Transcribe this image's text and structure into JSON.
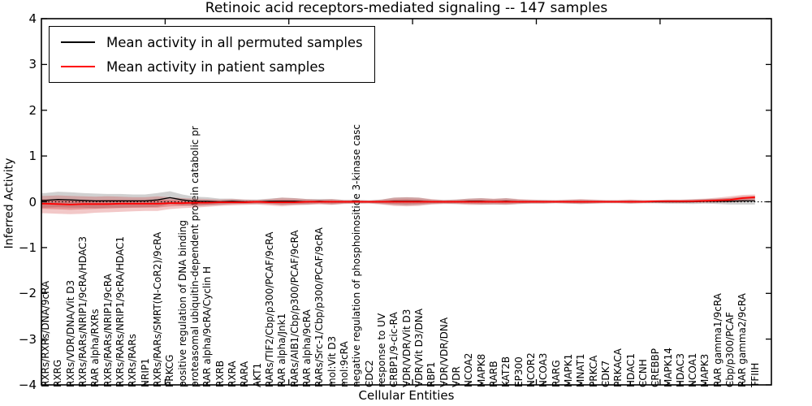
{
  "title": "Retinoic acid receptors-mediated signaling -- 147 samples",
  "legend": {
    "items": [
      {
        "label": "Mean activity in all permuted samples",
        "color": "#000000"
      },
      {
        "label": "Mean activity in patient samples",
        "color": "#ff0000"
      }
    ]
  },
  "axes": {
    "ylabel": "Inferred Activity",
    "xlabel": "Cellular Entities",
    "ylim": [
      -4,
      4
    ],
    "ytick_labels": [
      "4",
      "3",
      "2",
      "1",
      "0",
      "−1",
      "−2",
      "−3",
      "−4"
    ],
    "xtick_major_positions": [
      10,
      20,
      30,
      40,
      50
    ],
    "xlim": [
      0,
      59
    ]
  },
  "chart_data": {
    "type": "line",
    "title": "Retinoic acid receptors-mediated signaling -- 147 samples",
    "xlabel": "Cellular Entities",
    "ylabel": "Inferred Activity",
    "ylim": [
      -4,
      4
    ],
    "grid": false,
    "zero_line_dotted": true,
    "legend_position": "upper left",
    "categories": [
      "RXRs/RXRs/DNA/9cRA",
      "RXRG",
      "RXRs/VDR/DNA/Vit D3",
      "RXRs/RARs/NRIP1/9cRA/HDAC3",
      "RAR alpha/RXRs",
      "RXRs/RARs/NRIP1/9cRA",
      "RXRs/RARs/NRIP1/9cRA/HDAC1",
      "RXRs/RARs",
      "NRIP1",
      "RXRs/RARs/SMRT(N-CoR2)/9cRA",
      "PRKCG",
      "positive regulation of DNA binding",
      "proteasomal ubiquitin-dependent protein catabolic pr",
      "RAR alpha/9cRA/Cyclin H",
      "RXRB",
      "RXRA",
      "RARA",
      "AKT1",
      "RARs/TIF2/Cbp/p300/PCAF/9cRA",
      "RAR alpha/Jnk1",
      "RARs/AIB1/Cbp/p300/PCAF/9cRA",
      "RAR alpha/9cRA",
      "RARs/Src-1/Cbp/p300/PCAF/9cRA",
      "mol:Vit D3",
      "mol:9cRA",
      "negative regulation of phosphoinositide 3-kinase casc",
      "CDC2",
      "response to UV",
      "CRBP1/9-cic-RA",
      "VDR/VDR/Vit D3",
      "VDR/Vit D3/DNA",
      "RBP1",
      "VDR/VDR/DNA",
      "VDR",
      "NCOA2",
      "MAPK8",
      "RARB",
      "KAT2B",
      "EP300",
      "NCOR2",
      "NCOA3",
      "RARG",
      "MAPK1",
      "MNAT1",
      "PRKCA",
      "CDK7",
      "PRKACA",
      "HDAC1",
      "CCNH",
      "CREBBP",
      "MAPK14",
      "HDAC3",
      "NCOA1",
      "MAPK3",
      "RAR gamma1/9cRA",
      "Cbp/p300/PCAF",
      "RAR gamma2/9cRA",
      "TFIIH"
    ],
    "series": [
      {
        "name": "Mean activity in all permuted samples",
        "color": "#000000",
        "values": [
          0.03,
          0.05,
          0.04,
          0.03,
          0.02,
          0.02,
          0.02,
          0.02,
          0.02,
          0.04,
          0.09,
          0.04,
          0.01,
          0.01,
          0.0,
          0.01,
          0.0,
          0.0,
          0.01,
          0.01,
          0.01,
          0.0,
          0.01,
          0.0,
          0.0,
          0.0,
          0.0,
          0.0,
          0.01,
          0.01,
          0.01,
          0.0,
          0.0,
          0.0,
          0.01,
          0.01,
          0.0,
          0.01,
          0.0,
          0.0,
          0.0,
          0.0,
          0.0,
          0.0,
          0.0,
          0.0,
          0.0,
          0.0,
          0.0,
          0.0,
          0.0,
          0.0,
          0.0,
          0.01,
          0.01,
          0.01,
          0.02,
          0.02
        ]
      },
      {
        "name": "Mean activity in patient samples",
        "color": "#ff0000",
        "values": [
          -0.04,
          -0.05,
          -0.06,
          -0.05,
          -0.05,
          -0.05,
          -0.04,
          -0.04,
          -0.04,
          -0.04,
          -0.03,
          -0.03,
          -0.02,
          -0.02,
          -0.01,
          -0.01,
          -0.01,
          0.0,
          -0.01,
          -0.01,
          -0.01,
          0.0,
          0.0,
          0.0,
          0.0,
          0.0,
          0.0,
          0.0,
          0.0,
          0.0,
          0.0,
          0.0,
          0.0,
          0.0,
          0.0,
          0.0,
          0.0,
          0.0,
          0.0,
          0.0,
          0.0,
          0.0,
          0.0,
          0.0,
          0.0,
          0.0,
          0.0,
          0.0,
          0.0,
          0.01,
          0.01,
          0.01,
          0.01,
          0.02,
          0.03,
          0.04,
          0.08,
          0.1
        ]
      }
    ],
    "bands": [
      {
        "name": "permuted samples range",
        "color": "#787878",
        "opacity": 0.35,
        "hi": [
          0.19,
          0.22,
          0.21,
          0.19,
          0.18,
          0.17,
          0.17,
          0.16,
          0.16,
          0.19,
          0.23,
          0.16,
          0.11,
          0.1,
          0.07,
          0.07,
          0.05,
          0.05,
          0.07,
          0.09,
          0.08,
          0.06,
          0.06,
          0.06,
          0.04,
          0.04,
          0.03,
          0.05,
          0.09,
          0.1,
          0.09,
          0.05,
          0.04,
          0.05,
          0.07,
          0.08,
          0.06,
          0.08,
          0.05,
          0.04,
          0.04,
          0.03,
          0.04,
          0.05,
          0.04,
          0.03,
          0.03,
          0.04,
          0.03,
          0.03,
          0.04,
          0.04,
          0.05,
          0.06,
          0.07,
          0.08,
          0.1,
          0.1
        ],
        "lo": [
          -0.13,
          -0.12,
          -0.13,
          -0.13,
          -0.14,
          -0.13,
          -0.13,
          -0.12,
          -0.12,
          -0.11,
          -0.05,
          -0.08,
          -0.09,
          -0.08,
          -0.07,
          -0.05,
          -0.05,
          -0.05,
          -0.05,
          -0.07,
          -0.06,
          -0.06,
          -0.04,
          -0.06,
          -0.04,
          -0.04,
          -0.03,
          -0.05,
          -0.07,
          -0.08,
          -0.07,
          -0.05,
          -0.04,
          -0.05,
          -0.05,
          -0.06,
          -0.06,
          -0.06,
          -0.05,
          -0.04,
          -0.04,
          -0.03,
          -0.04,
          -0.05,
          -0.04,
          -0.03,
          -0.03,
          -0.04,
          -0.03,
          -0.03,
          -0.04,
          -0.04,
          -0.05,
          -0.04,
          -0.05,
          -0.06,
          -0.06,
          -0.06
        ]
      },
      {
        "name": "patient samples range",
        "color": "#cc2222",
        "opacity": 0.25,
        "inner_ratio": 0.55,
        "hi": [
          0.13,
          0.14,
          0.13,
          0.12,
          0.11,
          0.12,
          0.11,
          0.1,
          0.1,
          0.12,
          0.1,
          0.08,
          0.07,
          0.06,
          0.05,
          0.06,
          0.05,
          0.04,
          0.06,
          0.09,
          0.08,
          0.06,
          0.05,
          0.06,
          0.04,
          0.04,
          0.03,
          0.05,
          0.09,
          0.1,
          0.09,
          0.06,
          0.04,
          0.05,
          0.07,
          0.08,
          0.07,
          0.08,
          0.06,
          0.05,
          0.04,
          0.04,
          0.05,
          0.06,
          0.05,
          0.04,
          0.04,
          0.05,
          0.04,
          0.04,
          0.05,
          0.05,
          0.06,
          0.07,
          0.09,
          0.12,
          0.15,
          0.16
        ],
        "lo": [
          -0.25,
          -0.26,
          -0.27,
          -0.26,
          -0.24,
          -0.23,
          -0.22,
          -0.21,
          -0.2,
          -0.2,
          -0.16,
          -0.14,
          -0.13,
          -0.11,
          -0.09,
          -0.08,
          -0.07,
          -0.06,
          -0.08,
          -0.1,
          -0.08,
          -0.07,
          -0.06,
          -0.07,
          -0.05,
          -0.04,
          -0.04,
          -0.06,
          -0.09,
          -0.1,
          -0.09,
          -0.06,
          -0.05,
          -0.05,
          -0.07,
          -0.07,
          -0.06,
          -0.07,
          -0.05,
          -0.04,
          -0.04,
          -0.03,
          -0.04,
          -0.05,
          -0.04,
          -0.03,
          -0.03,
          -0.04,
          -0.03,
          -0.03,
          -0.03,
          -0.03,
          -0.02,
          -0.02,
          -0.02,
          -0.01,
          0.0,
          0.02
        ]
      }
    ]
  }
}
